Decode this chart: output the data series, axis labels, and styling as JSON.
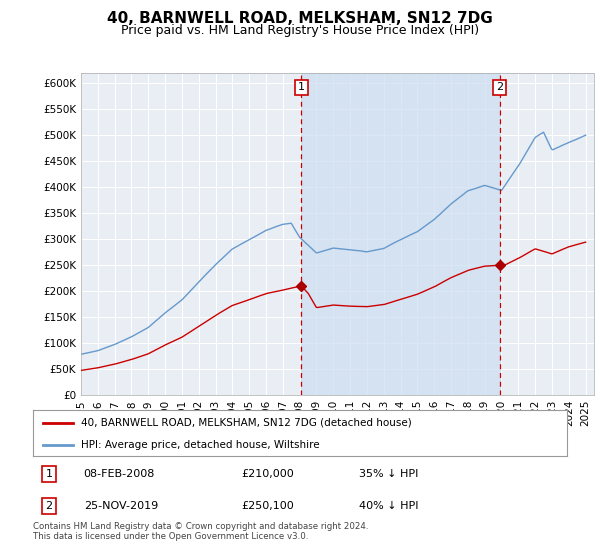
{
  "title": "40, BARNWELL ROAD, MELKSHAM, SN12 7DG",
  "subtitle": "Price paid vs. HM Land Registry's House Price Index (HPI)",
  "ylabel_ticks": [
    "£0",
    "£50K",
    "£100K",
    "£150K",
    "£200K",
    "£250K",
    "£300K",
    "£350K",
    "£400K",
    "£450K",
    "£500K",
    "£550K",
    "£600K"
  ],
  "ytick_values": [
    0,
    50000,
    100000,
    150000,
    200000,
    250000,
    300000,
    350000,
    400000,
    450000,
    500000,
    550000,
    600000
  ],
  "ylim": [
    0,
    620000
  ],
  "xlim_start": 1995.0,
  "xlim_end": 2025.5,
  "xtick_years": [
    1995,
    1996,
    1997,
    1998,
    1999,
    2000,
    2001,
    2002,
    2003,
    2004,
    2005,
    2006,
    2007,
    2008,
    2009,
    2010,
    2011,
    2012,
    2013,
    2014,
    2015,
    2016,
    2017,
    2018,
    2019,
    2020,
    2021,
    2022,
    2023,
    2024,
    2025
  ],
  "vline1_x": 2008.1,
  "vline2_x": 2019.9,
  "vline_color": "#cc0000",
  "vline_style": "--",
  "shade_color": "#ccddf0",
  "shade_alpha": 0.5,
  "marker1_x": 2008.1,
  "marker1_y": 210000,
  "marker2_x": 2019.9,
  "marker2_y": 250100,
  "marker_color": "#aa0000",
  "label1_text": "1",
  "label2_text": "2",
  "legend_line1_color": "#cc0000",
  "legend_line1_label": "40, BARNWELL ROAD, MELKSHAM, SN12 7DG (detached house)",
  "legend_line2_color": "#6699cc",
  "legend_line2_label": "HPI: Average price, detached house, Wiltshire",
  "table_data": [
    {
      "num": "1",
      "date": "08-FEB-2008",
      "price": "£210,000",
      "hpi": "35% ↓ HPI"
    },
    {
      "num": "2",
      "date": "25-NOV-2019",
      "price": "£250,100",
      "hpi": "40% ↓ HPI"
    }
  ],
  "footer": "Contains HM Land Registry data © Crown copyright and database right 2024.\nThis data is licensed under the Open Government Licence v3.0.",
  "background_color": "#ffffff",
  "plot_bg_color": "#e8eef4",
  "grid_color": "#ffffff",
  "title_fontsize": 11,
  "subtitle_fontsize": 9,
  "tick_fontsize": 7.5
}
